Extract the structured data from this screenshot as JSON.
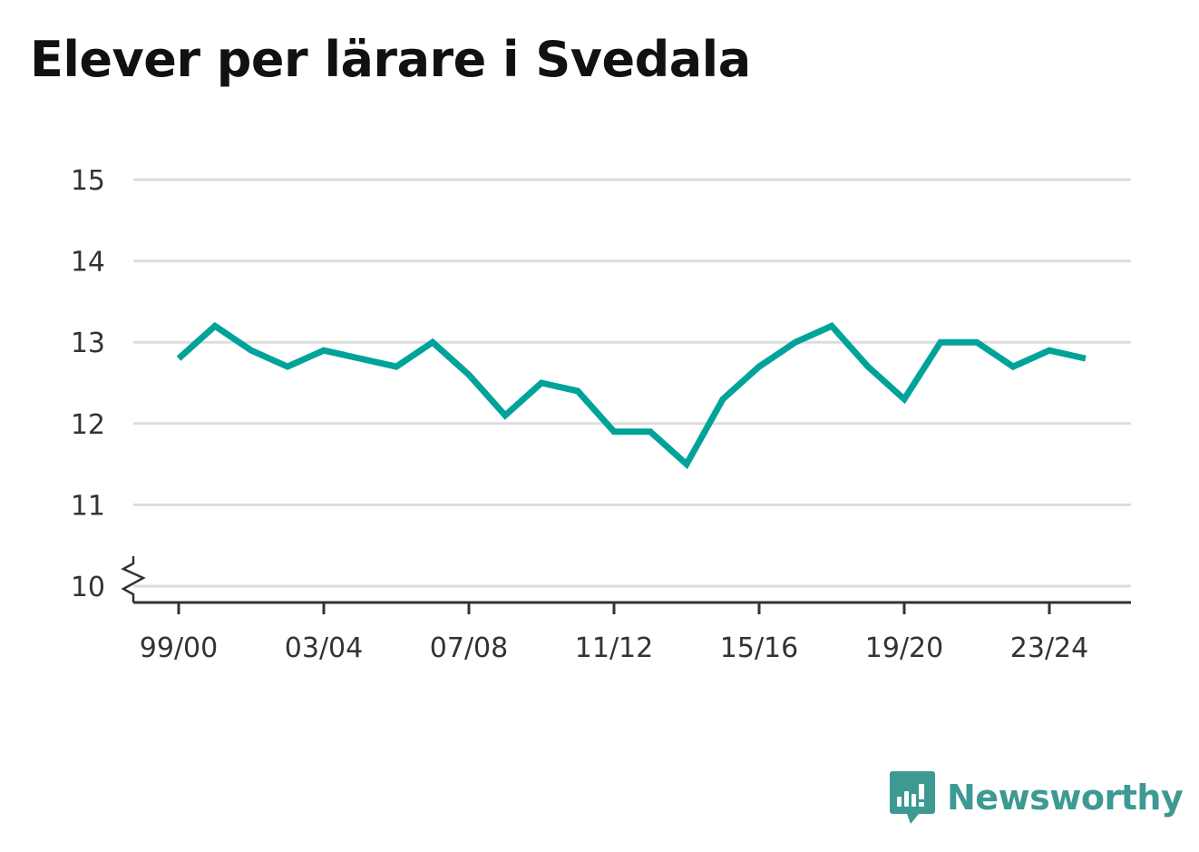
{
  "chart_data": {
    "type": "line",
    "title": "Elever per lärare i Svedala",
    "xlabel": "",
    "ylabel": "",
    "x": [
      "99/00",
      "00/01",
      "01/02",
      "02/03",
      "03/04",
      "04/05",
      "05/06",
      "06/07",
      "07/08",
      "08/09",
      "09/10",
      "10/11",
      "11/12",
      "12/13",
      "13/14",
      "14/15",
      "15/16",
      "16/17",
      "17/18",
      "18/19",
      "19/20",
      "20/21",
      "21/22",
      "22/23",
      "23/24",
      "24/25"
    ],
    "x_tick_labels": [
      "99/00",
      "03/04",
      "07/08",
      "11/12",
      "15/16",
      "19/20",
      "23/24"
    ],
    "series": [
      {
        "values": [
          12.8,
          13.2,
          12.9,
          12.7,
          12.9,
          12.8,
          12.7,
          13.0,
          12.6,
          12.1,
          12.5,
          12.4,
          11.9,
          11.9,
          11.5,
          12.3,
          12.7,
          13.0,
          13.2,
          12.7,
          12.3,
          13.0,
          13.0,
          12.7,
          12.9,
          12.8
        ]
      }
    ],
    "y_ticks": [
      10,
      11,
      12,
      13,
      14,
      15
    ],
    "ylim": [
      10,
      15
    ],
    "y_axis_break": true,
    "grid": true,
    "line_color": "#00a39a",
    "grid_color": "#dddddd",
    "axis_color": "#333333"
  },
  "brand": {
    "name": "Newsworthy",
    "icon": "newsworthy-logo-icon",
    "color": "#3c9a92"
  }
}
